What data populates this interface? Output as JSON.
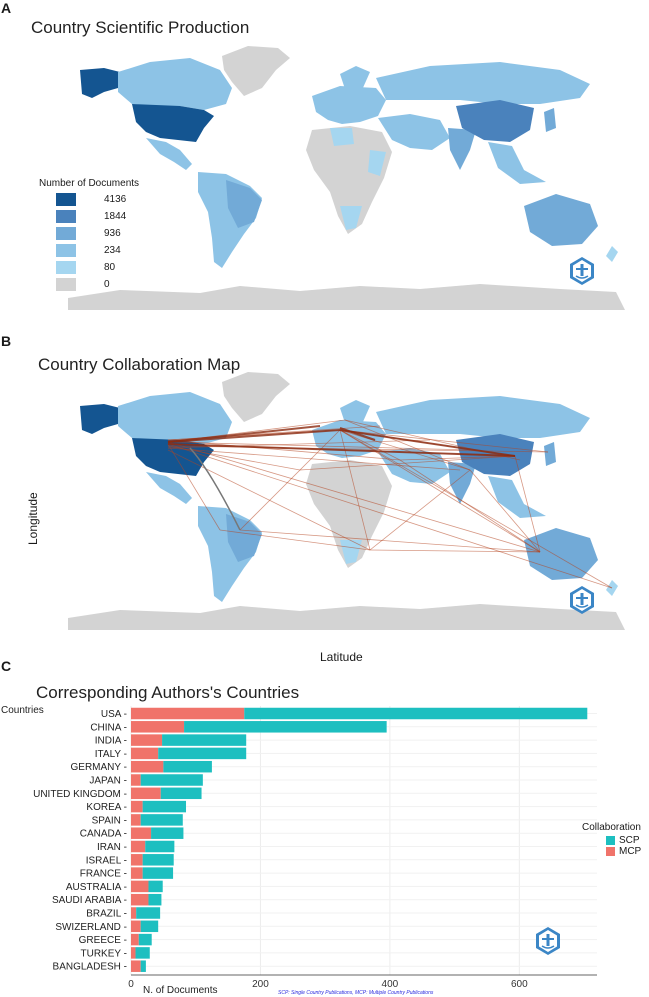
{
  "panels": {
    "a": {
      "letter": "A",
      "title": "Country Scientific Production",
      "legend_title": "Number of Documents",
      "legend": [
        {
          "label": "4136",
          "color": "#145591"
        },
        {
          "label": "1844",
          "color": "#4a82bc"
        },
        {
          "label": "936",
          "color": "#72aad7"
        },
        {
          "label": "234",
          "color": "#8dc3e6"
        },
        {
          "label": "80",
          "color": "#a5d6f0"
        },
        {
          "label": "0",
          "color": "#d3d3d3"
        }
      ]
    },
    "b": {
      "letter": "B",
      "title": "Country Collaboration Map",
      "ylabel": "Longitude",
      "xlabel": "Latitude",
      "link_color": "#b5431f"
    },
    "c": {
      "letter": "C",
      "title": "Corresponding Authors's Countries",
      "footnote": "SCP: Single Country Publications, MCP: Multiple Country Publications"
    }
  },
  "colors": {
    "scp": "#1dbfc0",
    "mcp": "#f0736a",
    "land_gray": "#d3d3d3"
  },
  "chart_data": {
    "type": "bar",
    "orientation": "horizontal",
    "stacked": true,
    "title": "Corresponding Authors's Countries",
    "xlabel": "N. of Documents",
    "ylabel": "Countries",
    "xlim": [
      0,
      720
    ],
    "xticks": [
      "0",
      "200",
      "400",
      "600"
    ],
    "legend_title": "Collaboration",
    "legend_position": "right",
    "categories": [
      "USA",
      "CHINA",
      "INDIA",
      "ITALY",
      "GERMANY",
      "JAPAN",
      "UNITED KINGDOM",
      "KOREA",
      "SPAIN",
      "CANADA",
      "IRAN",
      "ISRAEL",
      "FRANCE",
      "AUSTRALIA",
      "SAUDI ARABIA",
      "BRAZIL",
      "SWIZERLAND",
      "GREECE",
      "TURKEY",
      "BANGLADESH"
    ],
    "series": [
      {
        "name": "MCP",
        "values": [
          175,
          82,
          48,
          42,
          50,
          15,
          46,
          18,
          15,
          31,
          22,
          18,
          18,
          27,
          27,
          8,
          15,
          12,
          7,
          15
        ]
      },
      {
        "name": "SCP",
        "values": [
          530,
          313,
          130,
          136,
          75,
          96,
          63,
          67,
          65,
          50,
          45,
          48,
          47,
          22,
          20,
          37,
          27,
          20,
          22,
          8
        ]
      }
    ]
  }
}
